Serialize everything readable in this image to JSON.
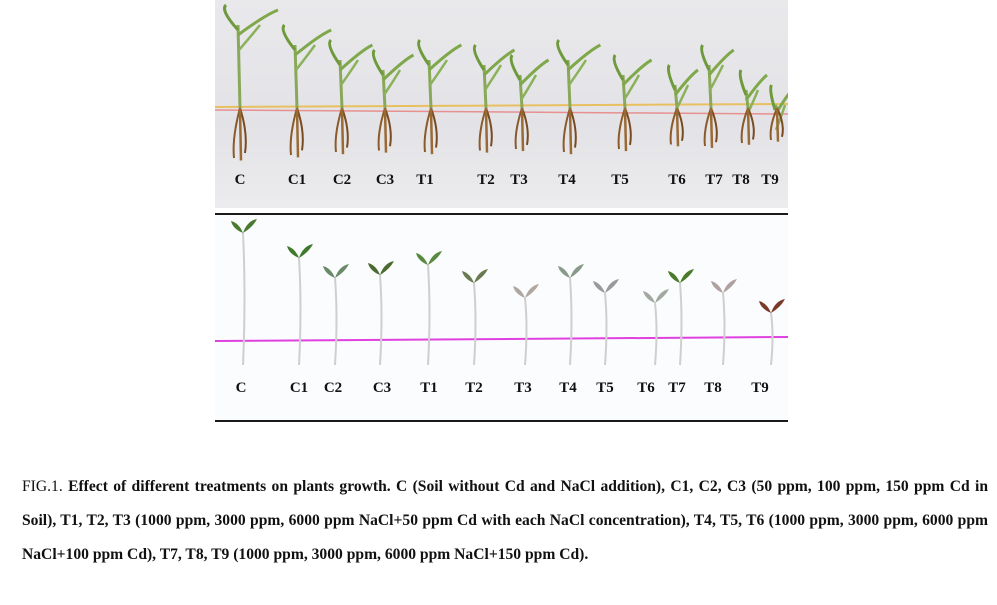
{
  "figure": {
    "top_panel_labels": [
      "C",
      "C1",
      "C2",
      "C3",
      "T1",
      "T2",
      "T3",
      "T4",
      "T5",
      "T6",
      "T7",
      "T8",
      "T9"
    ],
    "bottom_panel_labels": [
      "C",
      "C1",
      "C2",
      "C3",
      "T1",
      "T2",
      "T3",
      "T4",
      "T5",
      "T6",
      "T7",
      "T8",
      "T9"
    ]
  },
  "caption": {
    "number": "FIG.1.",
    "text": "Effect of different treatments on plants growth. C (Soil without Cd and NaCl addition), C1, C2, C3 (50 ppm, 100 ppm, 150 ppm Cd in Soil), T1, T2, T3 (1000 ppm, 3000 ppm, 6000 ppm NaCl+50 ppm Cd with each NaCl concentration), T4, T5, T6 (1000 ppm, 3000 ppm, 6000 ppm NaCl+100 ppm Cd), T7, T8, T9 (1000 ppm, 3000 ppm, 6000 ppm NaCl+150 ppm Cd)."
  }
}
